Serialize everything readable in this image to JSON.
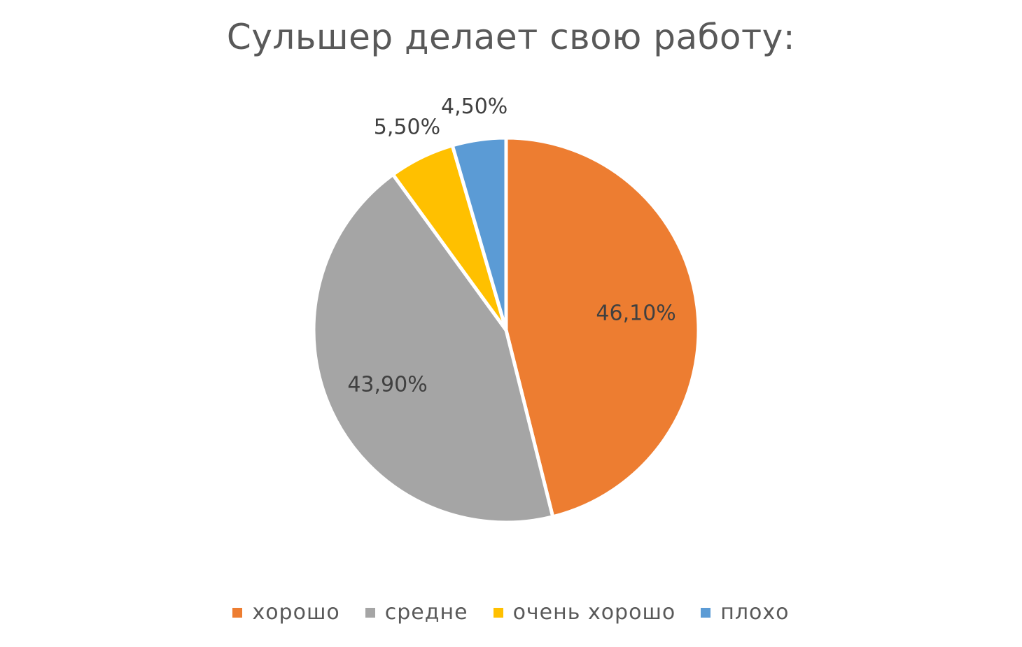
{
  "chart_data": {
    "type": "pie",
    "title": "Сульшер делает свою работу:",
    "slices": [
      {
        "name": "хорошо",
        "value": 46.1,
        "label": "46,10%",
        "color": "#ED7D31"
      },
      {
        "name": "средне",
        "value": 43.9,
        "label": "43,90%",
        "color": "#A5A5A5"
      },
      {
        "name": "очень хорошо",
        "value": 5.5,
        "label": "5,50%",
        "color": "#FFC000"
      },
      {
        "name": "плохо",
        "value": 4.5,
        "label": "4,50%",
        "color": "#5B9BD5"
      }
    ],
    "start_angle": "12 o'clock",
    "direction": "clockwise",
    "legend_position": "bottom"
  }
}
